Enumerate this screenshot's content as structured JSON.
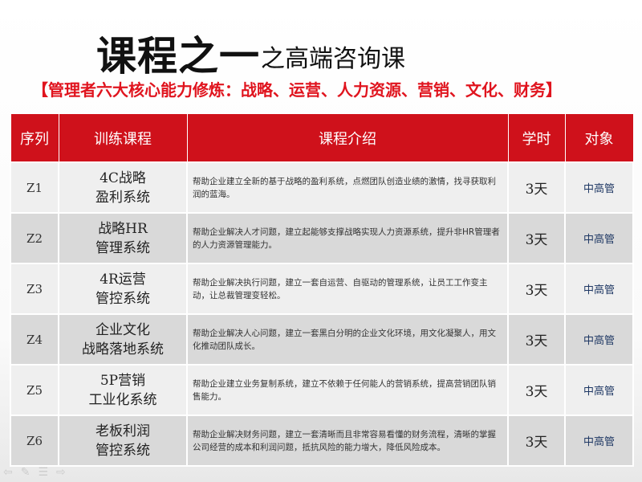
{
  "title": "课程之一",
  "subtitle": "之高端咨询课",
  "tagline": "【管理者六大核心能力修炼：战略、运营、人力资源、营销、文化、财务】",
  "table": {
    "headers": [
      "序列",
      "训练课程",
      "课程介绍",
      "学时",
      "对象"
    ],
    "rows": [
      {
        "id": "Z1",
        "name1": "4C战略",
        "name2": "盈利系统",
        "desc": "帮助企业建立全新的基于战略的盈利系统，点燃团队创造业绩的激情，找寻获取利润的蓝海。",
        "hours": "3天",
        "audience": "中高管"
      },
      {
        "id": "Z2",
        "name1": "战略HR",
        "name2": "管理系统",
        "desc": "帮助企业解决人才问题，建立起能够支撑战略实现人力资源系统，提升非HR管理者的人力资源管理能力。",
        "hours": "3天",
        "audience": "中高管"
      },
      {
        "id": "Z3",
        "name1": "4R运营",
        "name2": "管控系统",
        "desc": "帮助企业解决执行问题，建立一套自运营、自驱动的管理系统，让员工工作变主动，让总裁管理变轻松。",
        "hours": "3天",
        "audience": "中高管"
      },
      {
        "id": "Z4",
        "name1": "企业文化",
        "name2": "战略落地系统",
        "desc": "帮助企业解决人心问题，建立一套黑白分明的企业文化环境，用文化凝聚人，用文化推动团队成长。",
        "hours": "3天",
        "audience": "中高管"
      },
      {
        "id": "Z5",
        "name1": "5P营销",
        "name2": "工业化系统",
        "desc": "帮助企业建立业务复制系统，建立不依赖于任何能人的营销系统，提高营销团队销售能力。",
        "hours": "3天",
        "audience": "中高管"
      },
      {
        "id": "Z6",
        "name1": "老板利润",
        "name2": "管控系统",
        "desc": "帮助企业解决财务问题，建立一套清晰而且非常容易看懂的财务流程，清晰的掌握公司经营的成本和利润问题，抵抗风险的能力增大，降低风险成本。",
        "hours": "3天",
        "audience": "中高管"
      }
    ]
  },
  "colors": {
    "header": "#cf111b",
    "tagline": "#e0141e",
    "row_light": "#efefef",
    "row_dark": "#d9d9d9"
  }
}
